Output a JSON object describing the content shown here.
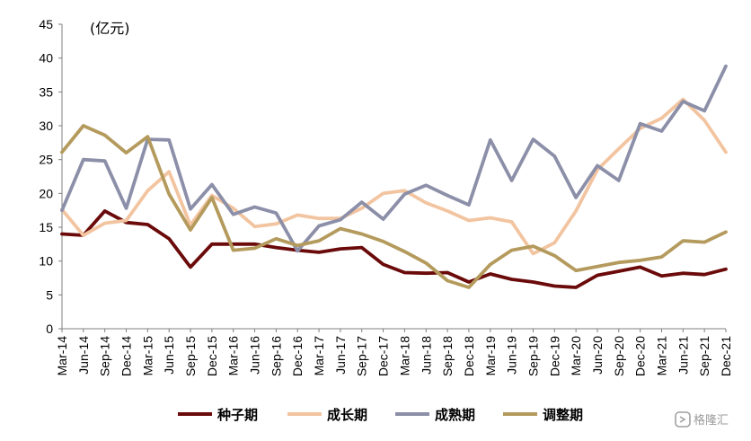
{
  "chart_data": {
    "type": "line",
    "unit_label": "(亿元)",
    "ylim": [
      0,
      45
    ],
    "yticks": [
      0,
      5,
      10,
      15,
      20,
      25,
      30,
      35,
      40,
      45
    ],
    "grid": false,
    "legend_position": "bottom",
    "categories": [
      "Mar-14",
      "Jun-14",
      "Sep-14",
      "Dec-14",
      "Mar-15",
      "Jun-15",
      "Sep-15",
      "Dec-15",
      "Mar-16",
      "Jun-16",
      "Sep-16",
      "Dec-16",
      "Mar-17",
      "Jun-17",
      "Sep-17",
      "Dec-17",
      "Mar-18",
      "Jun-18",
      "Sep-18",
      "Dec-18",
      "Mar-19",
      "Jun-19",
      "Sep-19",
      "Dec-19",
      "Mar-20",
      "Jun-20",
      "Sep-20",
      "Dec-20",
      "Mar-21",
      "Jun-21",
      "Sep-21",
      "Dec-21"
    ],
    "series": [
      {
        "name": "种子期",
        "color": "#6b0a0a",
        "values": [
          14.0,
          13.8,
          17.4,
          15.7,
          15.4,
          13.3,
          9.1,
          12.5,
          12.5,
          12.5,
          12.0,
          11.6,
          11.3,
          11.8,
          12.0,
          9.5,
          8.3,
          8.2,
          8.3,
          6.9,
          8.1,
          7.3,
          6.9,
          6.3,
          6.1,
          7.9,
          8.5,
          9.1,
          7.8,
          8.2,
          8.0,
          8.8
        ]
      },
      {
        "name": "成长期",
        "color": "#f2c4a0",
        "values": [
          17.6,
          13.8,
          15.6,
          16.0,
          20.4,
          23.2,
          15.3,
          19.7,
          17.8,
          15.1,
          15.5,
          16.8,
          16.3,
          16.3,
          17.8,
          20.0,
          20.4,
          18.6,
          17.4,
          16.0,
          16.4,
          15.8,
          11.1,
          12.7,
          17.4,
          23.5,
          26.6,
          29.6,
          31.1,
          33.9,
          30.8,
          26.1
        ]
      },
      {
        "name": "成熟期",
        "color": "#8c8fa8",
        "values": [
          17.5,
          25.0,
          24.8,
          17.8,
          28.0,
          27.9,
          17.7,
          21.3,
          16.9,
          18.0,
          17.1,
          11.5,
          15.2,
          16.1,
          18.7,
          16.2,
          19.9,
          21.2,
          19.7,
          18.3,
          27.9,
          21.9,
          28.0,
          25.5,
          19.4,
          24.1,
          21.9,
          30.3,
          29.2,
          33.6,
          32.2,
          38.8
        ]
      },
      {
        "name": "调整期",
        "color": "#b49a5c",
        "values": [
          26.1,
          30.0,
          28.6,
          26.0,
          28.4,
          19.9,
          14.6,
          19.4,
          11.6,
          11.9,
          13.3,
          12.3,
          13.0,
          14.8,
          14.0,
          12.9,
          11.4,
          9.7,
          7.1,
          6.1,
          9.5,
          11.6,
          12.2,
          10.8,
          8.6,
          9.2,
          9.8,
          10.1,
          10.6,
          13.0,
          12.8,
          14.3
        ]
      }
    ]
  },
  "watermark": "格隆汇"
}
